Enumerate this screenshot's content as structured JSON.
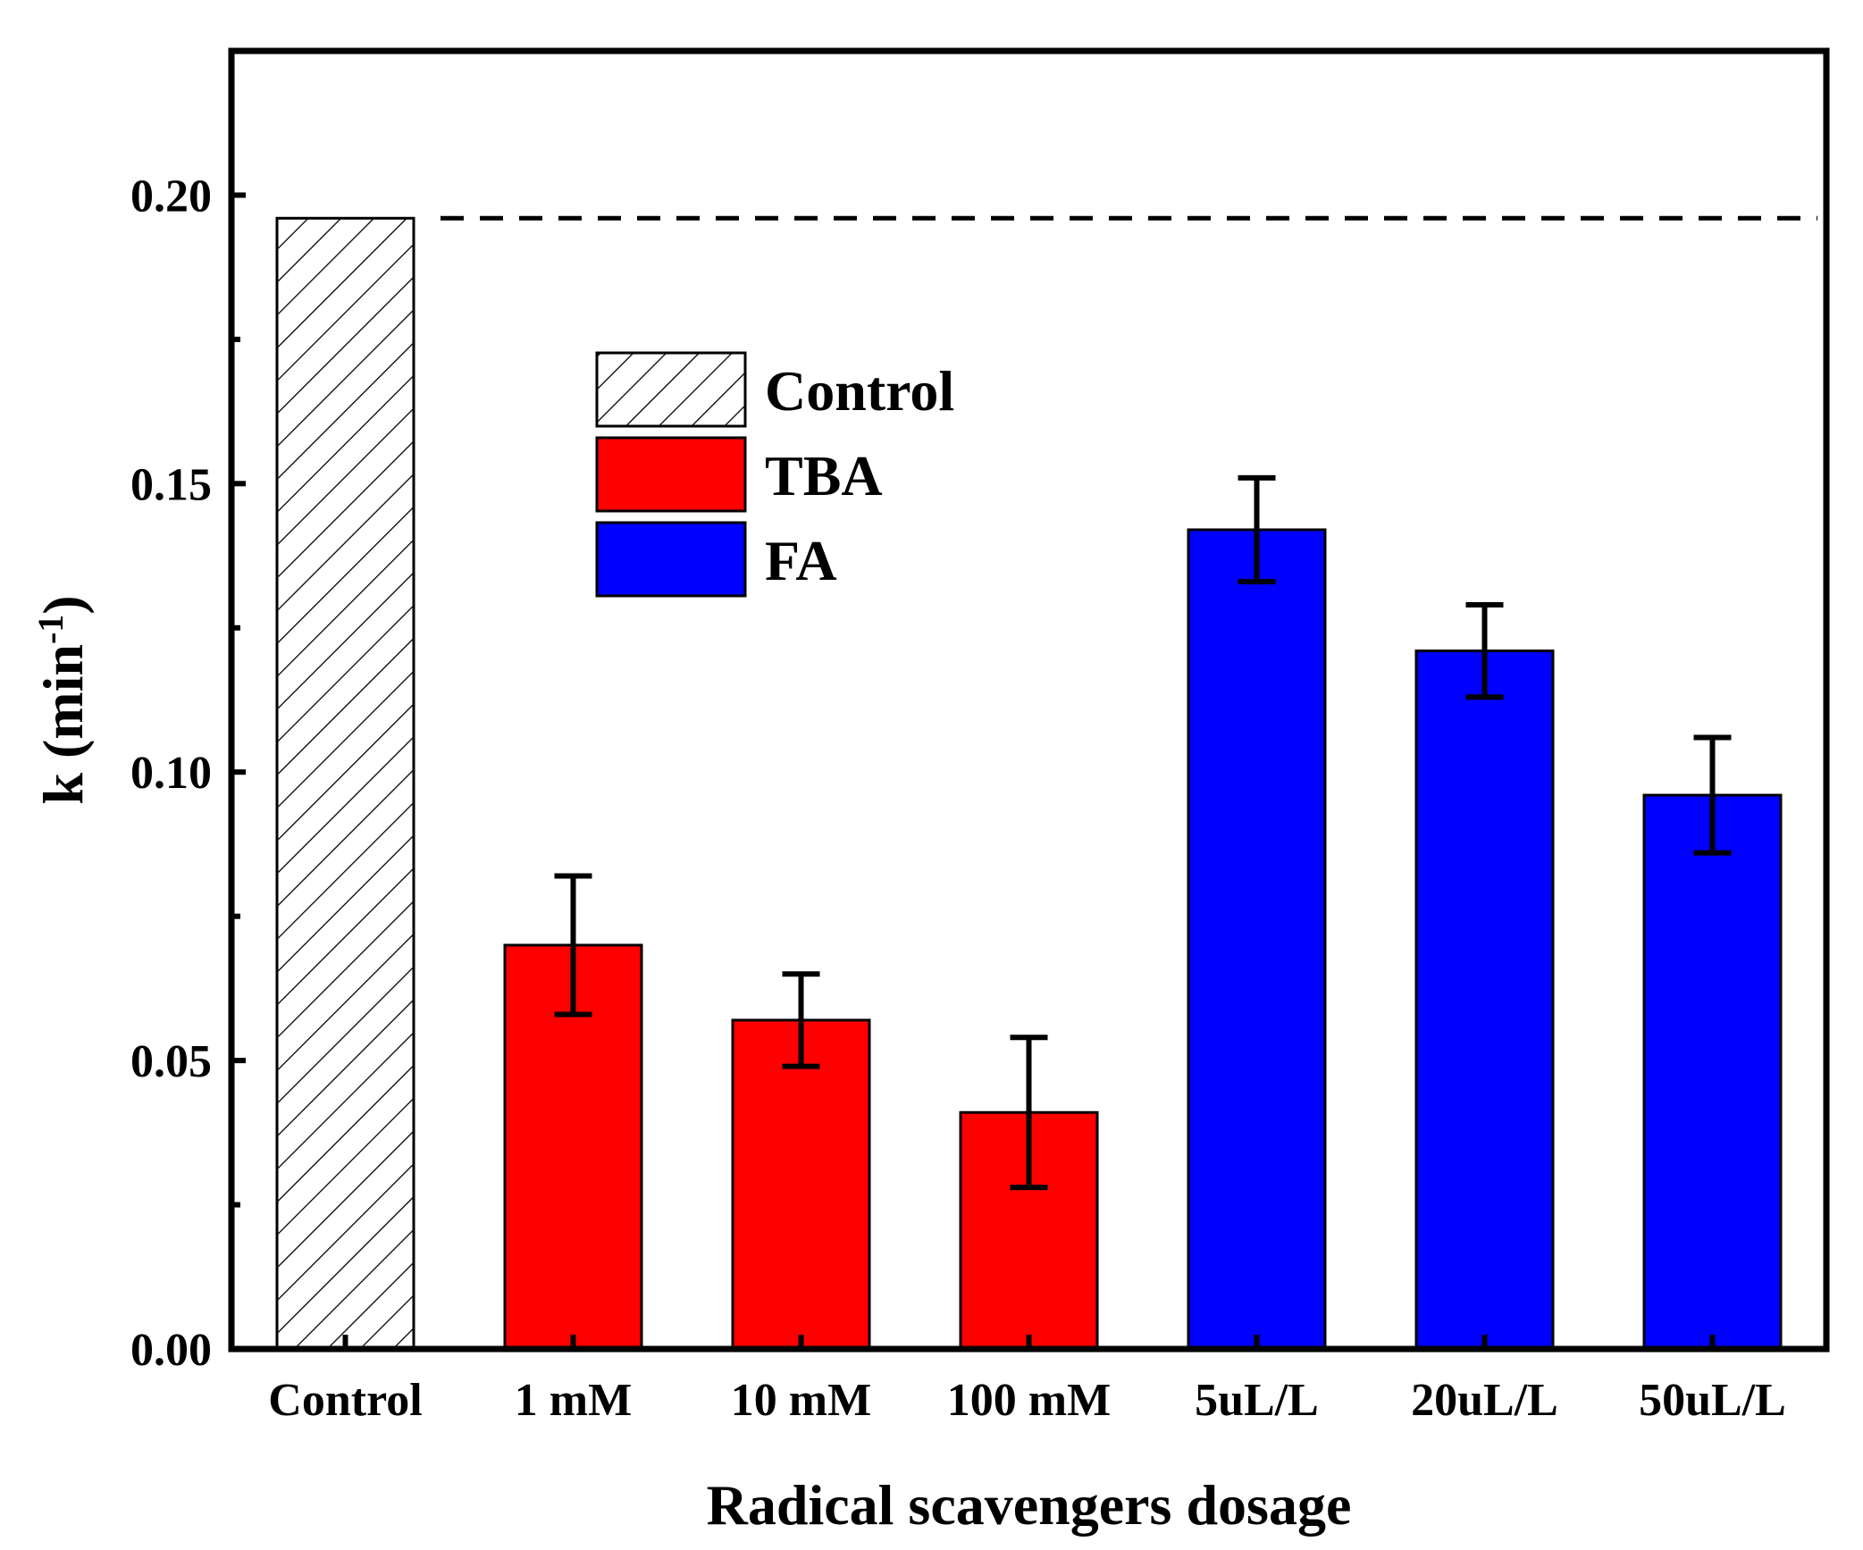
{
  "chart_data": {
    "type": "bar",
    "title": "",
    "xlabel": "Radical scavengers dosage",
    "ylabel": {
      "main": "k (min",
      "superscript": "-1",
      "close": ")"
    },
    "ylim": [
      0,
      0.225
    ],
    "y_ticks": [
      {
        "value": 0.0,
        "label": "0.00"
      },
      {
        "value": 0.05,
        "label": "0.05"
      },
      {
        "value": 0.1,
        "label": "0.10"
      },
      {
        "value": 0.15,
        "label": "0.15"
      },
      {
        "value": 0.2,
        "label": "0.20"
      }
    ],
    "y_minor_ticks": [
      0.025,
      0.075,
      0.125,
      0.175
    ],
    "categories": [
      "Control",
      "1 mM",
      "10 mM",
      "100 mM",
      "5uL/L",
      "20uL/L",
      "50uL/L"
    ],
    "bars": [
      {
        "category": "Control",
        "group": "Control",
        "value": 0.196,
        "error": null
      },
      {
        "category": "1 mM",
        "group": "TBA",
        "value": 0.07,
        "error": 0.012
      },
      {
        "category": "10 mM",
        "group": "TBA",
        "value": 0.057,
        "error": 0.008
      },
      {
        "category": "100 mM",
        "group": "TBA",
        "value": 0.041,
        "error": 0.013
      },
      {
        "category": "5uL/L",
        "group": "FA",
        "value": 0.142,
        "error": 0.009
      },
      {
        "category": "20uL/L",
        "group": "FA",
        "value": 0.121,
        "error": 0.008
      },
      {
        "category": "50uL/L",
        "group": "FA",
        "value": 0.096,
        "error": 0.01
      }
    ],
    "reference_line": {
      "value": 0.196,
      "style": "dashed",
      "color": "#000000"
    },
    "legend": {
      "position": "upper-center-left",
      "entries": [
        {
          "label": "Control",
          "fill": "hatch",
          "color": "#ffffff"
        },
        {
          "label": "TBA",
          "fill": "solid",
          "color": "#ff0000"
        },
        {
          "label": "FA",
          "fill": "solid",
          "color": "#0000ff"
        }
      ]
    },
    "colors": {
      "Control": "#ffffff",
      "TBA": "#ff0000",
      "FA": "#0000ff",
      "axis": "#000000"
    }
  }
}
